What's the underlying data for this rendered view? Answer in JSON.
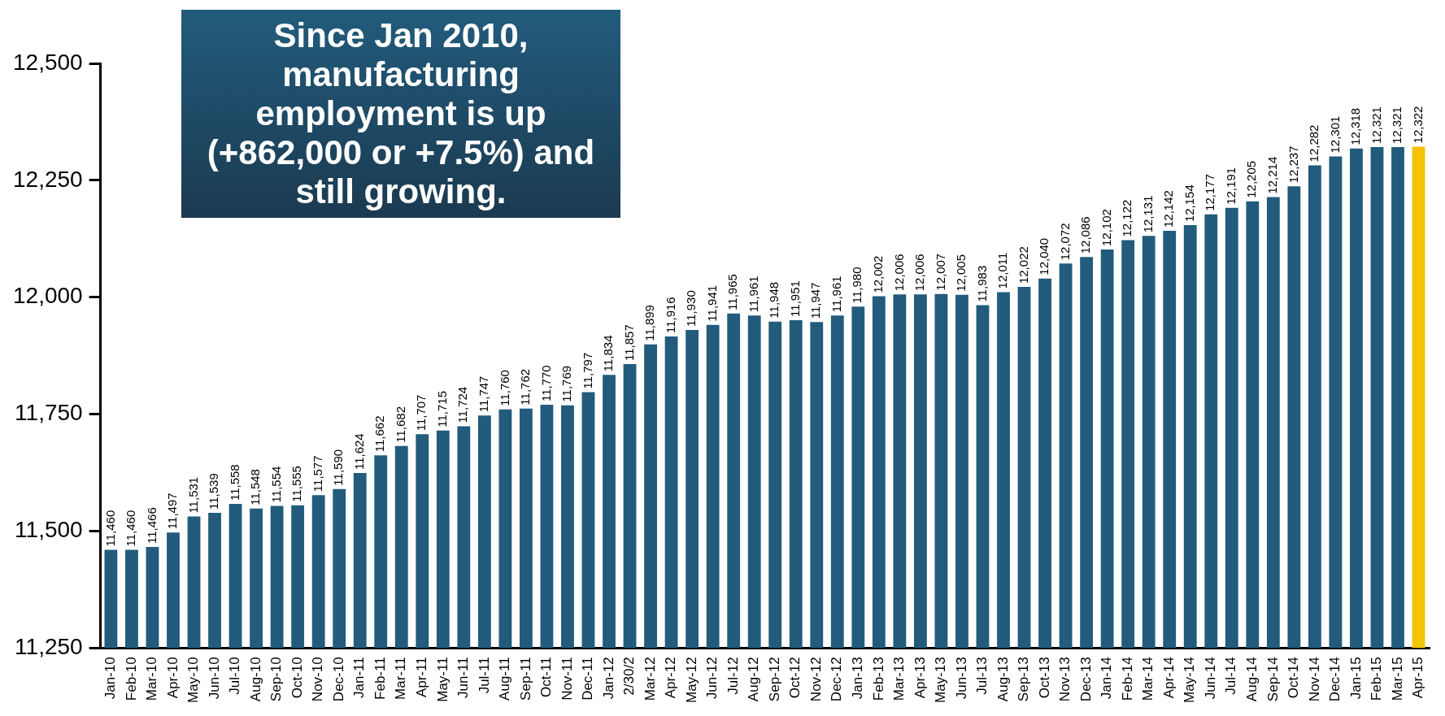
{
  "chart_data": {
    "type": "bar",
    "categories": [
      "Jan-10",
      "Feb-10",
      "Mar-10",
      "Apr-10",
      "May-10",
      "Jun-10",
      "Jul-10",
      "Aug-10",
      "Sep-10",
      "Oct-10",
      "Nov-10",
      "Dec-10",
      "Jan-11",
      "Feb-11",
      "Mar-11",
      "Apr-11",
      "May-11",
      "Jun-11",
      "Jul-11",
      "Aug-11",
      "Sep-11",
      "Oct-11",
      "Nov-11",
      "Dec-11",
      "Jan-12",
      "2/30/2",
      "Mar-12",
      "Apr-12",
      "May-12",
      "Jun-12",
      "Jul-12",
      "Aug-12",
      "Sep-12",
      "Oct-12",
      "Nov-12",
      "Dec-12",
      "Jan-13",
      "Feb-13",
      "Mar-13",
      "Apr-13",
      "May-13",
      "Jun-13",
      "Jul-13",
      "Aug-13",
      "Sep-13",
      "Oct-13",
      "Nov-13",
      "Dec-13",
      "Jan-14",
      "Feb-14",
      "Mar-14",
      "Apr-14",
      "May-14",
      "Jun-14",
      "Jul-14",
      "Aug-14",
      "Sep-14",
      "Oct-14",
      "Nov-14",
      "Dec-14",
      "Jan-15",
      "Feb-15",
      "Mar-15",
      "Apr-15"
    ],
    "values": [
      11460,
      11460,
      11466,
      11497,
      11531,
      11539,
      11558,
      11548,
      11554,
      11555,
      11577,
      11590,
      11624,
      11662,
      11682,
      11707,
      11715,
      11724,
      11747,
      11760,
      11762,
      11770,
      11769,
      11797,
      11834,
      11857,
      11899,
      11916,
      11930,
      11941,
      11965,
      11961,
      11948,
      11951,
      11947,
      11961,
      11980,
      12002,
      12006,
      12006,
      12007,
      12005,
      11983,
      12011,
      12022,
      12040,
      12072,
      12086,
      12102,
      12122,
      12131,
      12142,
      12154,
      12177,
      12191,
      12205,
      12214,
      12237,
      12282,
      12301,
      12318,
      12321,
      12321,
      12322
    ],
    "colors": [
      "#225b7c",
      "#225b7c",
      "#225b7c",
      "#225b7c",
      "#225b7c",
      "#225b7c",
      "#225b7c",
      "#225b7c",
      "#225b7c",
      "#225b7c",
      "#225b7c",
      "#225b7c",
      "#225b7c",
      "#225b7c",
      "#225b7c",
      "#225b7c",
      "#225b7c",
      "#225b7c",
      "#225b7c",
      "#225b7c",
      "#225b7c",
      "#225b7c",
      "#225b7c",
      "#225b7c",
      "#225b7c",
      "#225b7c",
      "#225b7c",
      "#225b7c",
      "#225b7c",
      "#225b7c",
      "#225b7c",
      "#225b7c",
      "#225b7c",
      "#225b7c",
      "#225b7c",
      "#225b7c",
      "#225b7c",
      "#225b7c",
      "#225b7c",
      "#225b7c",
      "#225b7c",
      "#225b7c",
      "#225b7c",
      "#225b7c",
      "#225b7c",
      "#225b7c",
      "#225b7c",
      "#225b7c",
      "#225b7c",
      "#225b7c",
      "#225b7c",
      "#225b7c",
      "#225b7c",
      "#225b7c",
      "#225b7c",
      "#225b7c",
      "#225b7c",
      "#225b7c",
      "#225b7c",
      "#225b7c",
      "#225b7c",
      "#225b7c",
      "#225b7c",
      "#f2c400"
    ],
    "value_labels": [
      "11,460",
      "11,460",
      "11,466",
      "11,497",
      "11,531",
      "11,539",
      "11,558",
      "11,548",
      "11,554",
      "11,555",
      "11,577",
      "11,590",
      "11,624",
      "11,662",
      "11,682",
      "11,707",
      "11,715",
      "11,724",
      "11,747",
      "11,760",
      "11,762",
      "11,770",
      "11,769",
      "11,797",
      "11,834",
      "11,857",
      "11,899",
      "11,916",
      "11,930",
      "11,941",
      "11,965",
      "11,961",
      "11,948",
      "11,951",
      "11,947",
      "11,961",
      "11,980",
      "12,002",
      "12,006",
      "12,006",
      "12,007",
      "12,005",
      "11,983",
      "12,011",
      "12,022",
      "12,040",
      "12,072",
      "12,086",
      "12,102",
      "12,122",
      "12,131",
      "12,142",
      "12,154",
      "12,177",
      "12,191",
      "12,205",
      "12,214",
      "12,237",
      "12,282",
      "12,301",
      "12,318",
      "12,321",
      "12,321",
      "12,322"
    ],
    "ylim": [
      11250,
      12500
    ],
    "yticks": [
      {
        "value": 11250,
        "label": "11,250"
      },
      {
        "value": 11500,
        "label": "11,500"
      },
      {
        "value": 11750,
        "label": "11,750"
      },
      {
        "value": 12000,
        "label": "12,000"
      },
      {
        "value": 12250,
        "label": "12,250"
      },
      {
        "value": 12500,
        "label": "12,500"
      }
    ],
    "grid": false,
    "annotations": [
      "Since Jan 2010, manufacturing employment is up (+862,000 or +7.5%) and still growing."
    ]
  }
}
